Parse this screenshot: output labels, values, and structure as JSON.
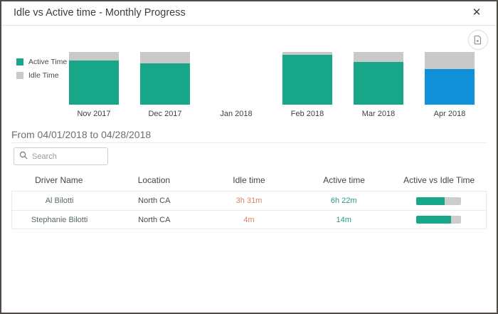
{
  "dialog": {
    "title": "Idle vs Active time - Monthly Progress",
    "close_glyph": "✕"
  },
  "chart_data": {
    "type": "bar",
    "stacked": true,
    "title": "Idle vs Active time - Monthly Progress",
    "categories": [
      "Nov 2017",
      "Dec 2017",
      "Jan 2018",
      "Feb 2018",
      "Mar 2018",
      "Apr 2018"
    ],
    "series": [
      {
        "name": "Active Time",
        "values": [
          84,
          78,
          0,
          94,
          81,
          68
        ]
      },
      {
        "name": "Idle Time",
        "values": [
          16,
          22,
          0,
          6,
          19,
          32
        ]
      }
    ],
    "value_unit": "percent of month total (bars share equal total height)",
    "ylim": [
      0,
      100
    ],
    "grid": false,
    "legend_position": "left",
    "highlight_index": 5,
    "highlight_note": "Apr 2018 active segment shown in blue (selected month)",
    "highlight_color": "#0f90d9",
    "colors": {
      "active": "#18a689",
      "idle": "#c9c9c9"
    }
  },
  "legend": {
    "items": [
      {
        "label": "Active Time",
        "color": "#18a689"
      },
      {
        "label": "Idle Time",
        "color": "#c9c9c9"
      }
    ]
  },
  "filter": {
    "date_range": "From 04/01/2018 to 04/28/2018"
  },
  "search": {
    "placeholder": "Search"
  },
  "table": {
    "headers": [
      "Driver Name",
      "Location",
      "Idle time",
      "Active time",
      "Active vs Idle Time"
    ],
    "rows": [
      {
        "name": "Al Bilotti",
        "location": "North CA",
        "idle": "3h 31m",
        "active": "6h 22m",
        "active_pct": 64
      },
      {
        "name": "Stephanie Bilotti",
        "location": "North CA",
        "idle": "4m",
        "active": "14m",
        "active_pct": 78
      }
    ]
  },
  "colors": {
    "idle_text": "#e0805f",
    "active_text": "#2a9a85",
    "progress_fill": "#18a689",
    "progress_track": "#cdcdcd"
  }
}
